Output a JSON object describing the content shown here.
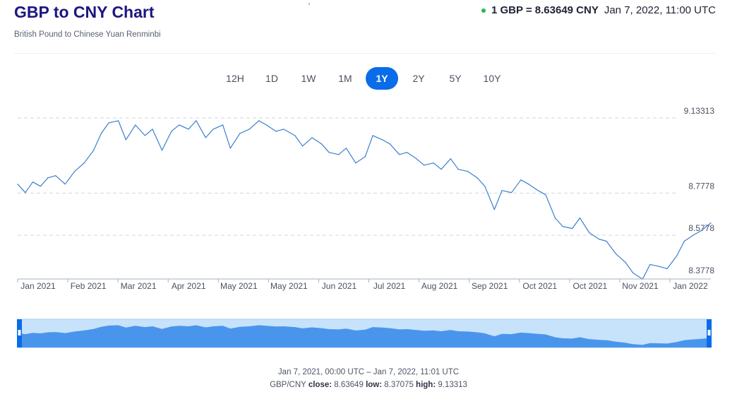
{
  "header": {
    "title": "GBP to CNY Chart",
    "subtitle": "British Pound to Chinese Yuan Renminbi",
    "rate": "1 GBP = 8.63649 CNY",
    "timestamp": "Jan 7, 2022, 11:00 UTC",
    "live_color": "#1fbd50"
  },
  "top_icon": "drag-handle-icon",
  "tabs": [
    {
      "label": "12H",
      "active": false
    },
    {
      "label": "1D",
      "active": false
    },
    {
      "label": "1W",
      "active": false
    },
    {
      "label": "1M",
      "active": false
    },
    {
      "label": "1Y",
      "active": true
    },
    {
      "label": "2Y",
      "active": false
    },
    {
      "label": "5Y",
      "active": false
    },
    {
      "label": "10Y",
      "active": false
    }
  ],
  "chart_data": {
    "type": "line",
    "pair": "GBP/CNY",
    "x_tick_labels": [
      "Jan 2021",
      "Feb 2021",
      "Mar 2021",
      "Apr 2021",
      "May 2021",
      "May 2021",
      "Jun 2021",
      "Jul 2021",
      "Aug 2021",
      "Sep 2021",
      "Oct 2021",
      "Oct 2021",
      "Nov 2021",
      "Jan 2022"
    ],
    "y_tick_labels": [
      "9.13313",
      "8.7778",
      "8.5778",
      "8.3778"
    ],
    "y_ticks": [
      9.13313,
      8.7778,
      8.5778,
      8.3778
    ],
    "ylim": [
      8.3778,
      9.13313
    ],
    "grid": true,
    "line_color": "#3a7fd0",
    "navigator_color": "#4a95ec",
    "series": [
      {
        "x": [
          "2021-01-07",
          "2021-01-11",
          "2021-01-15",
          "2021-01-19",
          "2021-01-23",
          "2021-01-27",
          "2021-02-01",
          "2021-02-06",
          "2021-02-11",
          "2021-02-16",
          "2021-02-20",
          "2021-02-24",
          "2021-03-01",
          "2021-03-05",
          "2021-03-10",
          "2021-03-15",
          "2021-03-19",
          "2021-03-24",
          "2021-03-29",
          "2021-04-02",
          "2021-04-07",
          "2021-04-11",
          "2021-04-16",
          "2021-04-20",
          "2021-04-25",
          "2021-04-29",
          "2021-05-04",
          "2021-05-09",
          "2021-05-14",
          "2021-05-18",
          "2021-05-23",
          "2021-05-27",
          "2021-06-02",
          "2021-06-06",
          "2021-06-11",
          "2021-06-16",
          "2021-06-20",
          "2021-06-25",
          "2021-06-29",
          "2021-07-04",
          "2021-07-09",
          "2021-07-13",
          "2021-07-18",
          "2021-07-22",
          "2021-07-27",
          "2021-07-31",
          "2021-08-05",
          "2021-08-09",
          "2021-08-14",
          "2021-08-18",
          "2021-08-23",
          "2021-08-27",
          "2021-09-01",
          "2021-09-06",
          "2021-09-10",
          "2021-09-15",
          "2021-09-19",
          "2021-09-24",
          "2021-09-29",
          "2021-10-03",
          "2021-10-08",
          "2021-10-12",
          "2021-10-17",
          "2021-10-21",
          "2021-10-26",
          "2021-10-30",
          "2021-11-04",
          "2021-11-09",
          "2021-11-13",
          "2021-11-18",
          "2021-11-23",
          "2021-11-27",
          "2021-12-02",
          "2021-12-06",
          "2021-12-11",
          "2021-12-15",
          "2021-12-20",
          "2021-12-24",
          "2021-12-29",
          "2022-01-02",
          "2022-01-07"
        ],
        "values": [
          8.82,
          8.78,
          8.83,
          8.81,
          8.85,
          8.86,
          8.82,
          8.88,
          8.92,
          8.98,
          9.06,
          9.11,
          9.12,
          9.03,
          9.1,
          9.05,
          9.08,
          8.98,
          9.07,
          9.1,
          9.08,
          9.12,
          9.04,
          9.08,
          9.1,
          8.99,
          9.06,
          9.08,
          9.12,
          9.1,
          9.07,
          9.08,
          9.05,
          9.0,
          9.04,
          9.01,
          8.97,
          8.96,
          8.99,
          8.92,
          8.95,
          9.05,
          9.03,
          9.01,
          8.96,
          8.97,
          8.94,
          8.91,
          8.92,
          8.89,
          8.94,
          8.89,
          8.88,
          8.85,
          8.81,
          8.7,
          8.79,
          8.78,
          8.84,
          8.82,
          8.79,
          8.77,
          8.66,
          8.62,
          8.61,
          8.66,
          8.59,
          8.56,
          8.55,
          8.49,
          8.45,
          8.4,
          8.37,
          8.44,
          8.43,
          8.42,
          8.48,
          8.55,
          8.58,
          8.6,
          8.63649
        ]
      }
    ]
  },
  "footer": {
    "range": "Jan 7, 2021, 00:00 UTC – Jan 7, 2022, 11:01 UTC",
    "pair_label": "GBP/CNY",
    "close_label": "close:",
    "close_value": "8.63649",
    "low_label": "low:",
    "low_value": "8.37075",
    "high_label": "high:",
    "high_value": "9.13313"
  }
}
